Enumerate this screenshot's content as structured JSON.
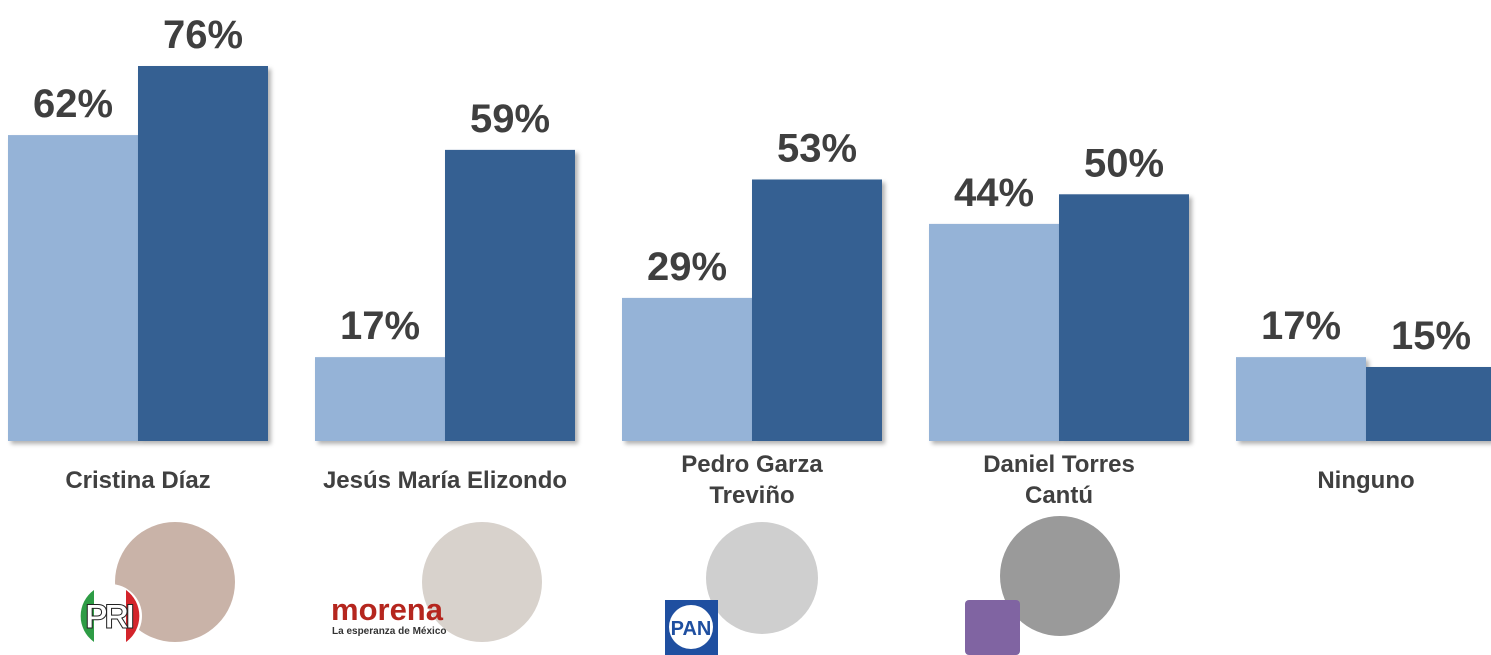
{
  "chart_data": {
    "type": "bar",
    "categories": [
      "Cristina Díaz",
      "Jesús María Elizondo",
      "Pedro Garza Treviño",
      "Daniel Torres Cantú",
      "Ninguno"
    ],
    "series": [
      {
        "color": "#95b3d7",
        "values": [
          62,
          17,
          29,
          44,
          17
        ],
        "value_labels": [
          "62%",
          "17%",
          "29%",
          "44%",
          "17%"
        ]
      },
      {
        "color": "#366092",
        "values": [
          76,
          59,
          53,
          50,
          15
        ],
        "value_labels": [
          "76%",
          "59%",
          "53%",
          "50%",
          "15%"
        ]
      }
    ]
  },
  "logos": {
    "pri": "PRI",
    "morena": "morena",
    "morena_tagline": "La esperanza de México",
    "pan": "PAN"
  }
}
